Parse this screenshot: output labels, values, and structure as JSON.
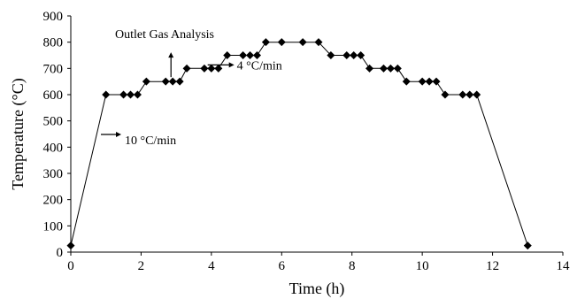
{
  "chart_data": {
    "type": "line",
    "title": "",
    "xlabel": "Time (h)",
    "ylabel": "Temperature (°C)",
    "xlim": [
      0,
      14
    ],
    "ylim": [
      0,
      900
    ],
    "xticks": [
      0,
      2,
      4,
      6,
      8,
      10,
      12,
      14
    ],
    "yticks": [
      0,
      100,
      200,
      300,
      400,
      500,
      600,
      700,
      800,
      900
    ],
    "grid": false,
    "legend": "none",
    "series": [
      {
        "marker": "diamond",
        "color": "#000000",
        "x": [
          0,
          1.0,
          1.5,
          1.7,
          1.9,
          2.15,
          2.7,
          2.9,
          3.1,
          3.3,
          3.8,
          4.0,
          4.2,
          4.45,
          4.9,
          5.1,
          5.3,
          5.55,
          6.0,
          6.6,
          7.05,
          7.4,
          7.85,
          8.05,
          8.25,
          8.5,
          8.9,
          9.1,
          9.3,
          9.55,
          10.0,
          10.2,
          10.4,
          10.65,
          11.15,
          11.35,
          11.55,
          13.0
        ],
        "y": [
          25,
          600,
          600,
          600,
          600,
          650,
          650,
          650,
          650,
          700,
          700,
          700,
          700,
          750,
          750,
          750,
          750,
          800,
          800,
          800,
          800,
          750,
          750,
          750,
          750,
          700,
          700,
          700,
          700,
          650,
          650,
          650,
          650,
          600,
          600,
          600,
          600,
          25
        ]
      }
    ],
    "annotations": [
      {
        "text": "Outlet Gas Analysis",
        "x": 2.8,
        "y": 650,
        "arrow": "up"
      },
      {
        "text": "4 °C/min",
        "x": 4.6,
        "y": 720,
        "arrow": "right"
      },
      {
        "text": "10 °C/min",
        "x": 0.9,
        "y": 355,
        "arrow": "right"
      }
    ]
  }
}
